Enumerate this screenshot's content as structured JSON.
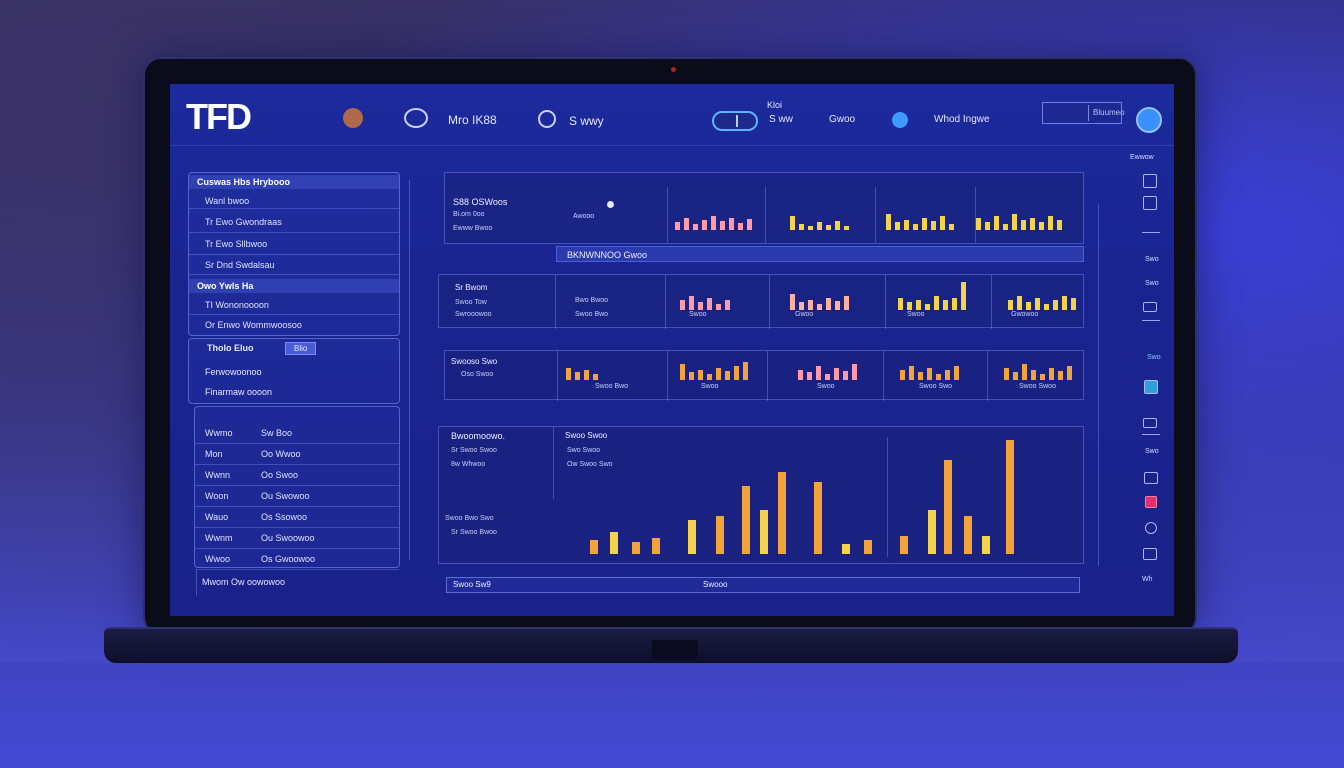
{
  "header": {
    "logo": "TFD",
    "nav1": "Mro IK88",
    "nav2": "S wwy",
    "toggle_label": "Kloi",
    "nav3": "S ww",
    "nav4": "Gwoo",
    "nav5": "Whod Ingwe",
    "box_label": "Bluumeo"
  },
  "left_panel": {
    "title": "Cuswas  Hbs  Hrybooo",
    "rows": [
      "Wanl bwoo",
      "Tr Ewo Gwondraas",
      "Tr Ewo Sllbwoo",
      "Sr Dnd Swdalsau"
    ],
    "section2_title": "Owo Ywls Ha",
    "section2_rows": [
      "TI Wononoooon",
      "Or Enwo Wommwoosoo"
    ],
    "section3_title": "Tholo Eluo",
    "section3_badge": "Blio",
    "section3_rows": [
      "Ferwowoonoo",
      "Finarmaw oooon"
    ],
    "list": [
      {
        "a": "Wwmo",
        "b": "Sw Boo"
      },
      {
        "a": "Mon",
        "b": "Oo Wwoo"
      },
      {
        "a": "Wwnn",
        "b": "Oo Swoo"
      },
      {
        "a": "Woon",
        "b": "Ou Swowoo"
      },
      {
        "a": "Wauo",
        "b": "Os Ssowoo"
      },
      {
        "a": "Wwnm",
        "b": "Ou Swoowoo"
      },
      {
        "a": "Wwoo",
        "b": "Os Gwoowoo"
      }
    ],
    "bottom": "Mwom  Ow oowowoo"
  },
  "main": {
    "row1_labels": [
      "S88 OSWoos",
      "Bi.om 0oo",
      "Ewww Bwoo"
    ],
    "row1_sub": "Awooo",
    "row1_tag": "BKNWNNOO Gwoo",
    "row2_labels": [
      "Sr Bwom",
      "Swoo Tow",
      "Bwo Bwoo"
    ],
    "row2_sub": [
      "Swrooowoo",
      "Swoo Bwo",
      "Swoo",
      "Gwoo",
      "Swoo",
      "Gwowoo"
    ],
    "row3_labels": [
      "Swooso Swo",
      "Oso  Swoo"
    ],
    "row3_sub": [
      "Swoo Bwo",
      "Swoo",
      "Swoo",
      "Swoo Swo",
      "Swoo Swoo"
    ],
    "row4_left": [
      "Bwoomoowo.",
      "Sr Swoo Swoo",
      "8w Whwoo"
    ],
    "row4_left2": [
      "Swoo Bwo Swo",
      "Sr Swoo Bwoo"
    ],
    "row4_mid": [
      "Swoo Swoo",
      "Swo Swoo",
      "Ow Swoo Swo"
    ],
    "footer_left": "Swoo Sw9",
    "footer_mid": "Swooo"
  },
  "right_rail": {
    "top": "Ewwow",
    "labels": [
      "Swo",
      "Swo",
      "Swo",
      "Swo",
      "Wh"
    ]
  },
  "colors": {
    "accent_orange": "#f2a33a",
    "accent_yellow": "#f4d24a",
    "accent_pink": "#ff8fa6",
    "screen_blue": "#1c2a9c"
  }
}
